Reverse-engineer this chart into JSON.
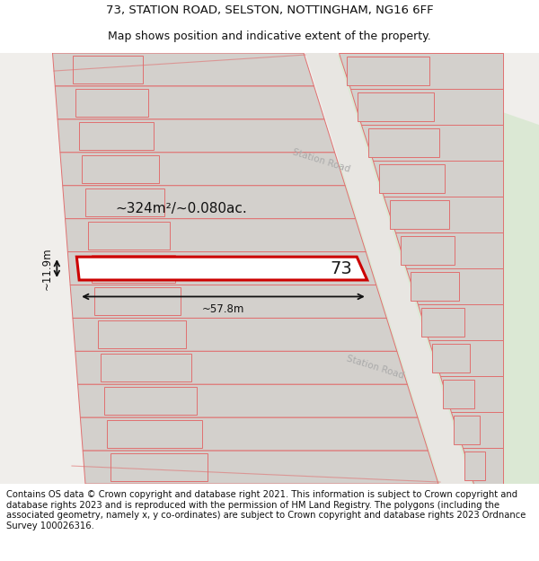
{
  "title_line1": "73, STATION ROAD, SELSTON, NOTTINGHAM, NG16 6FF",
  "title_line2": "Map shows position and indicative extent of the property.",
  "footer_text": "Contains OS data © Crown copyright and database right 2021. This information is subject to Crown copyright and database rights 2023 and is reproduced with the permission of HM Land Registry. The polygons (including the associated geometry, namely x, y co-ordinates) are subject to Crown copyright and database rights 2023 Ordnance Survey 100026316.",
  "area_label": "~324m²/~0.080ac.",
  "width_label": "~57.8m",
  "height_label": "~11.9m",
  "plot_number": "73",
  "road_label": "Station Road",
  "bg_color": "#ffffff",
  "map_bg": "#f0eeeb",
  "building_fill": "#d3d0cc",
  "building_stroke": "#e07070",
  "highlight_stroke": "#cc0000",
  "green_fill": "#d8e8d0",
  "road_fill": "#e8e6e2",
  "title_fontsize": 9.5,
  "footer_fontsize": 7.2,
  "map_border_color": "#cccccc"
}
